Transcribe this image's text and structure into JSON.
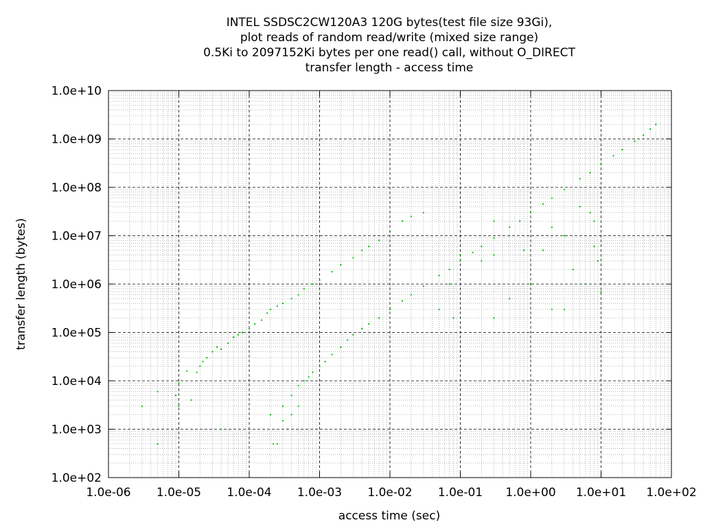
{
  "chart_data": {
    "type": "scatter",
    "title_lines": [
      "INTEL SSDSC2CW120A3 120G bytes(test file size 93Gi),",
      "plot reads of random read/write (mixed size range)",
      "0.5Ki to 2097152Ki bytes per one read() call, without O_DIRECT",
      "transfer length - access time"
    ],
    "xlabel": "access time (sec)",
    "ylabel": "transfer length (bytes)",
    "x_scale": "log",
    "y_scale": "log",
    "xlim": [
      1e-06,
      100
    ],
    "ylim": [
      100,
      10000000000
    ],
    "x_ticks": [
      {
        "value": 1e-06,
        "label": "1.0e-06"
      },
      {
        "value": 1e-05,
        "label": "1.0e-05"
      },
      {
        "value": 0.0001,
        "label": "1.0e-04"
      },
      {
        "value": 0.001,
        "label": "1.0e-03"
      },
      {
        "value": 0.01,
        "label": "1.0e-02"
      },
      {
        "value": 0.1,
        "label": "1.0e-01"
      },
      {
        "value": 1,
        "label": "1.0e+00"
      },
      {
        "value": 10,
        "label": "1.0e+01"
      },
      {
        "value": 100,
        "label": "1.0e+02"
      }
    ],
    "y_ticks": [
      {
        "value": 100,
        "label": "1.0e+02"
      },
      {
        "value": 1000,
        "label": "1.0e+03"
      },
      {
        "value": 10000,
        "label": "1.0e+04"
      },
      {
        "value": 100000,
        "label": "1.0e+05"
      },
      {
        "value": 1000000,
        "label": "1.0e+06"
      },
      {
        "value": 10000000,
        "label": "1.0e+07"
      },
      {
        "value": 100000000,
        "label": "1.0e+08"
      },
      {
        "value": 1000000000,
        "label": "1.0e+09"
      },
      {
        "value": 10000000000,
        "label": "1.0e+10"
      }
    ],
    "grid": true,
    "minor_grid": true,
    "legend": "none",
    "point_color": "#00c000",
    "grid_major_color": "#000000",
    "grid_minor_color": "#a0a0a0",
    "series": [
      {
        "points": [
          [
            5e-06,
            500
          ],
          [
            5e-06,
            6000
          ],
          [
            9e-06,
            5000
          ],
          [
            1e-05,
            9000
          ],
          [
            1e-05,
            3000
          ],
          [
            1.3e-05,
            16000
          ],
          [
            1.5e-05,
            4000
          ],
          [
            1.8e-05,
            15000
          ],
          [
            2e-05,
            20000
          ],
          [
            2.2e-05,
            25000
          ],
          [
            2.5e-05,
            30000
          ],
          [
            3e-05,
            40000
          ],
          [
            3.5e-05,
            50000
          ],
          [
            4e-05,
            45000
          ],
          [
            5e-05,
            60000
          ],
          [
            6e-05,
            80000
          ],
          [
            7e-05,
            90000
          ],
          [
            8e-05,
            100000
          ],
          [
            0.0001,
            120000
          ],
          [
            0.00012,
            150000
          ],
          [
            0.00015,
            180000
          ],
          [
            0.00018,
            250000
          ],
          [
            0.0002,
            300000
          ],
          [
            0.00025,
            350000
          ],
          [
            0.0003,
            400000
          ],
          [
            0.0004,
            500000
          ],
          [
            0.0005,
            600000
          ],
          [
            0.0006,
            800000
          ],
          [
            0.0008,
            1000000
          ],
          [
            0.001,
            1200000
          ],
          [
            0.0015,
            1800000
          ],
          [
            0.002,
            2500000
          ],
          [
            0.003,
            3500000
          ],
          [
            0.004,
            5000000
          ],
          [
            0.005,
            6000000
          ],
          [
            0.007,
            8000000
          ],
          [
            0.01,
            12000000
          ],
          [
            0.015,
            20000000
          ],
          [
            0.02,
            25000000
          ],
          [
            0.03,
            30000000
          ],
          [
            3e-06,
            3000
          ],
          [
            4e-05,
            1000
          ],
          [
            0.00022,
            500
          ],
          [
            0.00025,
            500
          ],
          [
            0.0002,
            2000
          ],
          [
            0.0003,
            1500
          ],
          [
            0.0003,
            3000
          ],
          [
            0.00035,
            1000
          ],
          [
            0.0004,
            2000
          ],
          [
            0.0004,
            5000
          ],
          [
            0.0005,
            3000
          ],
          [
            0.0005,
            8000
          ],
          [
            0.0006,
            10000
          ],
          [
            0.0007,
            12000
          ],
          [
            0.0008,
            15000
          ],
          [
            0.001,
            20000
          ],
          [
            0.0012,
            25000
          ],
          [
            0.0015,
            35000
          ],
          [
            0.002,
            50000
          ],
          [
            0.0025,
            70000
          ],
          [
            0.003,
            90000
          ],
          [
            0.004,
            120000
          ],
          [
            0.005,
            150000
          ],
          [
            0.007,
            200000
          ],
          [
            0.01,
            300000
          ],
          [
            0.015,
            450000
          ],
          [
            0.02,
            600000
          ],
          [
            0.03,
            900000
          ],
          [
            0.05,
            1500000
          ],
          [
            0.07,
            2000000
          ],
          [
            0.1,
            3000000
          ],
          [
            0.15,
            4500000
          ],
          [
            0.2,
            6000000
          ],
          [
            0.3,
            9000000
          ],
          [
            0.5,
            15000000
          ],
          [
            0.7,
            20000000
          ],
          [
            1,
            30000000
          ],
          [
            1.5,
            45000000
          ],
          [
            2,
            60000000
          ],
          [
            3,
            90000000
          ],
          [
            5,
            150000000
          ],
          [
            7,
            200000000
          ],
          [
            10,
            300000000
          ],
          [
            15,
            450000000
          ],
          [
            20,
            600000000
          ],
          [
            30,
            900000000
          ],
          [
            40,
            1200000000
          ],
          [
            50,
            1600000000
          ],
          [
            60,
            2000000000
          ],
          [
            0.3,
            20000000
          ],
          [
            0.5,
            10000000
          ],
          [
            0.8,
            5000000
          ],
          [
            1.5,
            5000000
          ],
          [
            2,
            15000000
          ],
          [
            3,
            10000000
          ],
          [
            5,
            40000000
          ],
          [
            7,
            30000000
          ],
          [
            8,
            20000000
          ],
          [
            8,
            6000000
          ],
          [
            9,
            3000000
          ],
          [
            6,
            1000000
          ],
          [
            2,
            300000
          ],
          [
            0.07,
            1000000
          ],
          [
            0.08,
            200000
          ],
          [
            0.05,
            300000
          ],
          [
            0.3,
            200000
          ],
          [
            0.5,
            500000
          ],
          [
            0.1,
            4000000
          ],
          [
            0.2,
            3000000
          ],
          [
            0.3,
            4000000
          ],
          [
            1,
            1000000
          ],
          [
            4,
            2000000
          ],
          [
            10,
            700000
          ],
          [
            3,
            300000
          ]
        ]
      }
    ]
  }
}
